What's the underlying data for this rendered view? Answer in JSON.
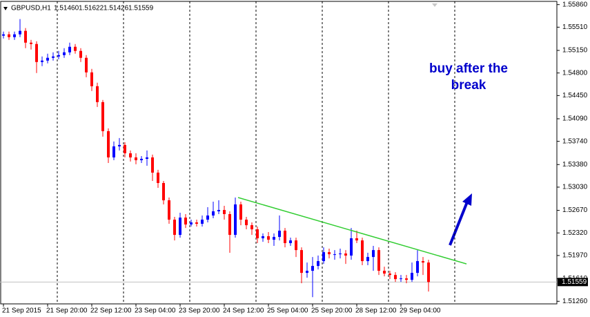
{
  "chart_data": {
    "type": "candlestick",
    "symbol": "GBPUSD,H1",
    "header_ohlc": [
      {
        "value": 1.5146,
        "label": "1.51460"
      },
      {
        "value": 1.51622,
        "label": "1.51622"
      },
      {
        "value": 1.51426,
        "label": "1.51426"
      },
      {
        "value": 1.51559,
        "label": "1.51559"
      }
    ],
    "x": [
      0,
      2,
      4,
      6,
      8,
      10,
      12,
      14,
      16,
      18,
      20,
      22,
      24,
      26,
      28,
      30,
      32,
      34,
      36,
      38,
      40,
      42,
      44,
      46,
      48,
      50,
      52,
      54,
      56,
      58,
      60,
      62,
      64,
      66,
      68,
      70,
      72,
      74,
      76,
      78,
      80,
      82,
      84,
      86,
      88,
      90,
      92,
      94,
      96,
      98,
      100,
      102,
      104,
      106,
      108,
      110,
      112,
      114,
      116,
      118,
      120,
      122,
      124,
      126,
      128,
      130,
      132,
      134,
      136,
      138,
      140,
      142,
      144,
      146,
      148,
      150,
      152,
      154
    ],
    "open": [
      1.55378,
      1.55399,
      1.55356,
      1.55399,
      1.55453,
      1.5527,
      1.55249,
      1.5497,
      1.54992,
      1.55035,
      1.55056,
      1.55077,
      1.5512,
      1.55206,
      1.55142,
      1.55035,
      1.54809,
      1.54595,
      1.54348,
      1.53898,
      1.53491,
      1.53662,
      1.53684,
      1.53555,
      1.53491,
      1.53448,
      1.53469,
      1.53491,
      1.53255,
      1.53094,
      1.52826,
      1.52526,
      1.5229,
      1.52558,
      1.52451,
      1.52483,
      1.52462,
      1.52526,
      1.5259,
      1.52655,
      1.52676,
      1.52612,
      1.5229,
      1.52762,
      1.52526,
      1.5244,
      1.52376,
      1.52237,
      1.52269,
      1.52215,
      1.52258,
      1.52355,
      1.52162,
      1.52204,
      1.52054,
      1.51701,
      1.51733,
      1.51808,
      1.51883,
      1.52022,
      1.5199,
      1.5199,
      1.52001,
      1.51969,
      1.52237,
      1.52204,
      1.51883,
      1.51947,
      1.52054,
      1.51733,
      1.5169,
      1.51668,
      1.51604,
      1.51615,
      1.51593,
      1.51701,
      1.51883,
      1.51861
    ],
    "high": [
      1.55442,
      1.55442,
      1.55442,
      1.55635,
      1.55496,
      1.55313,
      1.55292,
      1.55056,
      1.55099,
      1.5512,
      1.55142,
      1.55185,
      1.5527,
      1.55249,
      1.55185,
      1.55077,
      1.54863,
      1.54649,
      1.54381,
      1.53941,
      1.53737,
      1.53791,
      1.53727,
      1.53598,
      1.53555,
      1.53512,
      1.53598,
      1.53534,
      1.53298,
      1.53126,
      1.52869,
      1.52569,
      1.52633,
      1.52612,
      1.52526,
      1.52526,
      1.5259,
      1.52719,
      1.52805,
      1.52826,
      1.5274,
      1.52655,
      1.52869,
      1.52805,
      1.52569,
      1.52483,
      1.52419,
      1.52312,
      1.52333,
      1.52312,
      1.5259,
      1.52397,
      1.52247,
      1.52247,
      1.52097,
      1.51861,
      1.51947,
      1.51969,
      1.52097,
      1.52076,
      1.52054,
      1.52076,
      1.52054,
      1.52397,
      1.52355,
      1.52247,
      1.52012,
      1.52119,
      1.52097,
      1.51797,
      1.51733,
      1.51711,
      1.51668,
      1.51668,
      1.51861,
      1.52054,
      1.51947,
      1.51904
    ],
    "low": [
      1.55335,
      1.55313,
      1.55313,
      1.55356,
      1.55185,
      1.55163,
      1.54799,
      1.54906,
      1.54949,
      1.54992,
      1.55013,
      1.55035,
      1.55077,
      1.55099,
      1.5497,
      1.54734,
      1.5452,
      1.54273,
      1.53812,
      1.53405,
      1.53448,
      1.53598,
      1.53491,
      1.53427,
      1.53384,
      1.53405,
      1.53362,
      1.53126,
      1.53019,
      1.52762,
      1.52462,
      1.52204,
      1.52247,
      1.52397,
      1.52419,
      1.52419,
      1.52419,
      1.52483,
      1.52548,
      1.52612,
      1.52526,
      1.52012,
      1.52247,
      1.5244,
      1.52376,
      1.5229,
      1.52162,
      1.52183,
      1.52162,
      1.52119,
      1.52204,
      1.52097,
      1.52119,
      1.51947,
      1.5154,
      1.51626,
      1.51325,
      1.51754,
      1.5184,
      1.51926,
      1.51904,
      1.51926,
      1.5184,
      1.51904,
      1.52162,
      1.51819,
      1.51819,
      1.51733,
      1.51668,
      1.51647,
      1.51604,
      1.51561,
      1.51561,
      1.5154,
      1.51561,
      1.51647,
      1.51668,
      1.51411
    ],
    "close": [
      1.55399,
      1.55356,
      1.55399,
      1.55453,
      1.5527,
      1.55249,
      1.5497,
      1.54992,
      1.55035,
      1.55056,
      1.55077,
      1.5512,
      1.55206,
      1.55142,
      1.55035,
      1.54809,
      1.54595,
      1.54348,
      1.53898,
      1.53491,
      1.53662,
      1.53684,
      1.53555,
      1.53491,
      1.53448,
      1.53469,
      1.53491,
      1.53255,
      1.53094,
      1.52826,
      1.52526,
      1.5229,
      1.52558,
      1.52451,
      1.52483,
      1.52462,
      1.52526,
      1.5259,
      1.52655,
      1.52676,
      1.52612,
      1.5229,
      1.52762,
      1.52526,
      1.5244,
      1.52376,
      1.52237,
      1.52269,
      1.52215,
      1.52258,
      1.52355,
      1.52162,
      1.52204,
      1.52054,
      1.51701,
      1.51733,
      1.51808,
      1.51883,
      1.52022,
      1.5199,
      1.5199,
      1.52001,
      1.51969,
      1.52237,
      1.52204,
      1.51883,
      1.51947,
      1.52054,
      1.51733,
      1.5169,
      1.51668,
      1.51604,
      1.51615,
      1.51593,
      1.51701,
      1.51883,
      1.51861,
      1.51559
    ],
    "up_color": "#0000ff",
    "down_color": "#ff0000",
    "xlim": [
      -1.25,
      200.5
    ],
    "ylim": [
      1.5122,
      1.5591
    ],
    "yticks": [
      {
        "value": 1.5586,
        "label": "1.55860"
      },
      {
        "value": 1.5551,
        "label": "1.55510"
      },
      {
        "value": 1.5515,
        "label": "1.55150"
      },
      {
        "value": 1.548,
        "label": "1.54800"
      },
      {
        "value": 1.5445,
        "label": "1.54450"
      },
      {
        "value": 1.5409,
        "label": "1.54090"
      },
      {
        "value": 1.5374,
        "label": "1.53740"
      },
      {
        "value": 1.5338,
        "label": "1.53380"
      },
      {
        "value": 1.5303,
        "label": "1.53030"
      },
      {
        "value": 1.5267,
        "label": "1.52670"
      },
      {
        "value": 1.5232,
        "label": "1.52320"
      },
      {
        "value": 1.5197,
        "label": "1.51970"
      },
      {
        "value": 1.5161,
        "label": "1.51610"
      },
      {
        "value": 1.5126,
        "label": "1.51260"
      }
    ],
    "xticks": [
      {
        "value": 0,
        "label": "21 Sep 2015"
      },
      {
        "value": 16,
        "label": "21 Sep 20:00"
      },
      {
        "value": 32,
        "label": "22 Sep 12:00"
      },
      {
        "value": 48,
        "label": "23 Sep 04:00"
      },
      {
        "value": 64,
        "label": "23 Sep 20:00"
      },
      {
        "value": 80,
        "label": "24 Sep 12:00"
      },
      {
        "value": 96,
        "label": "25 Sep 04:00"
      },
      {
        "value": 112,
        "label": "25 Sep 20:00"
      },
      {
        "value": 128,
        "label": "28 Sep 12:00"
      },
      {
        "value": 144,
        "label": "29 Sep 04:00"
      }
    ],
    "day_separators": [
      19.5,
      43.5,
      67.5,
      91.5,
      115.5,
      139.5,
      163.5
    ],
    "current_price": {
      "value": 1.51559,
      "label": "1.51559"
    },
    "trendline": {
      "x": [
        85,
        167.75
      ],
      "y": [
        1.52869,
        1.5184
      ],
      "color": "#32cd32"
    },
    "annotation": [
      "buy after the",
      "break"
    ],
    "annotation_color": "#0000cc"
  }
}
